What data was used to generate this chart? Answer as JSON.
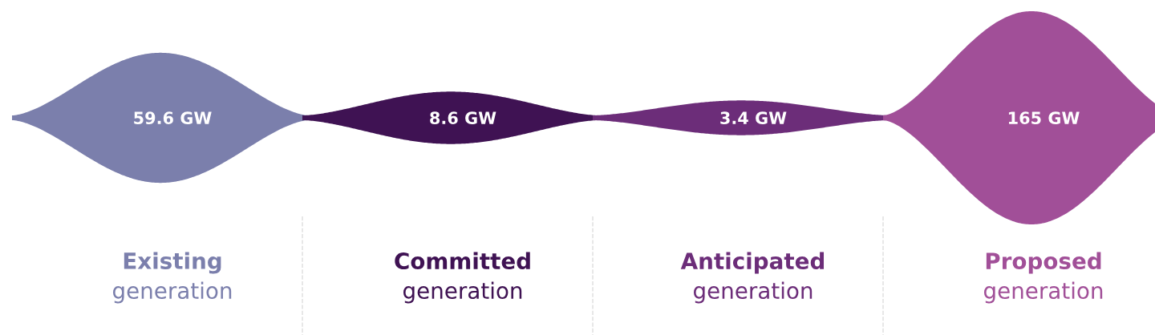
{
  "chart_data": {
    "type": "other",
    "categories": [
      "Existing generation",
      "Committed generation",
      "Anticipated generation",
      "Proposed generation"
    ],
    "values": [
      59.6,
      8.6,
      3.4,
      165
    ],
    "value_labels": [
      "59.6 GW",
      "8.6 GW",
      "3.4 GW",
      "165 GW"
    ],
    "colors": [
      "#7b7fac",
      "#3f1253",
      "#6c2d79",
      "#a14f98"
    ]
  }
}
